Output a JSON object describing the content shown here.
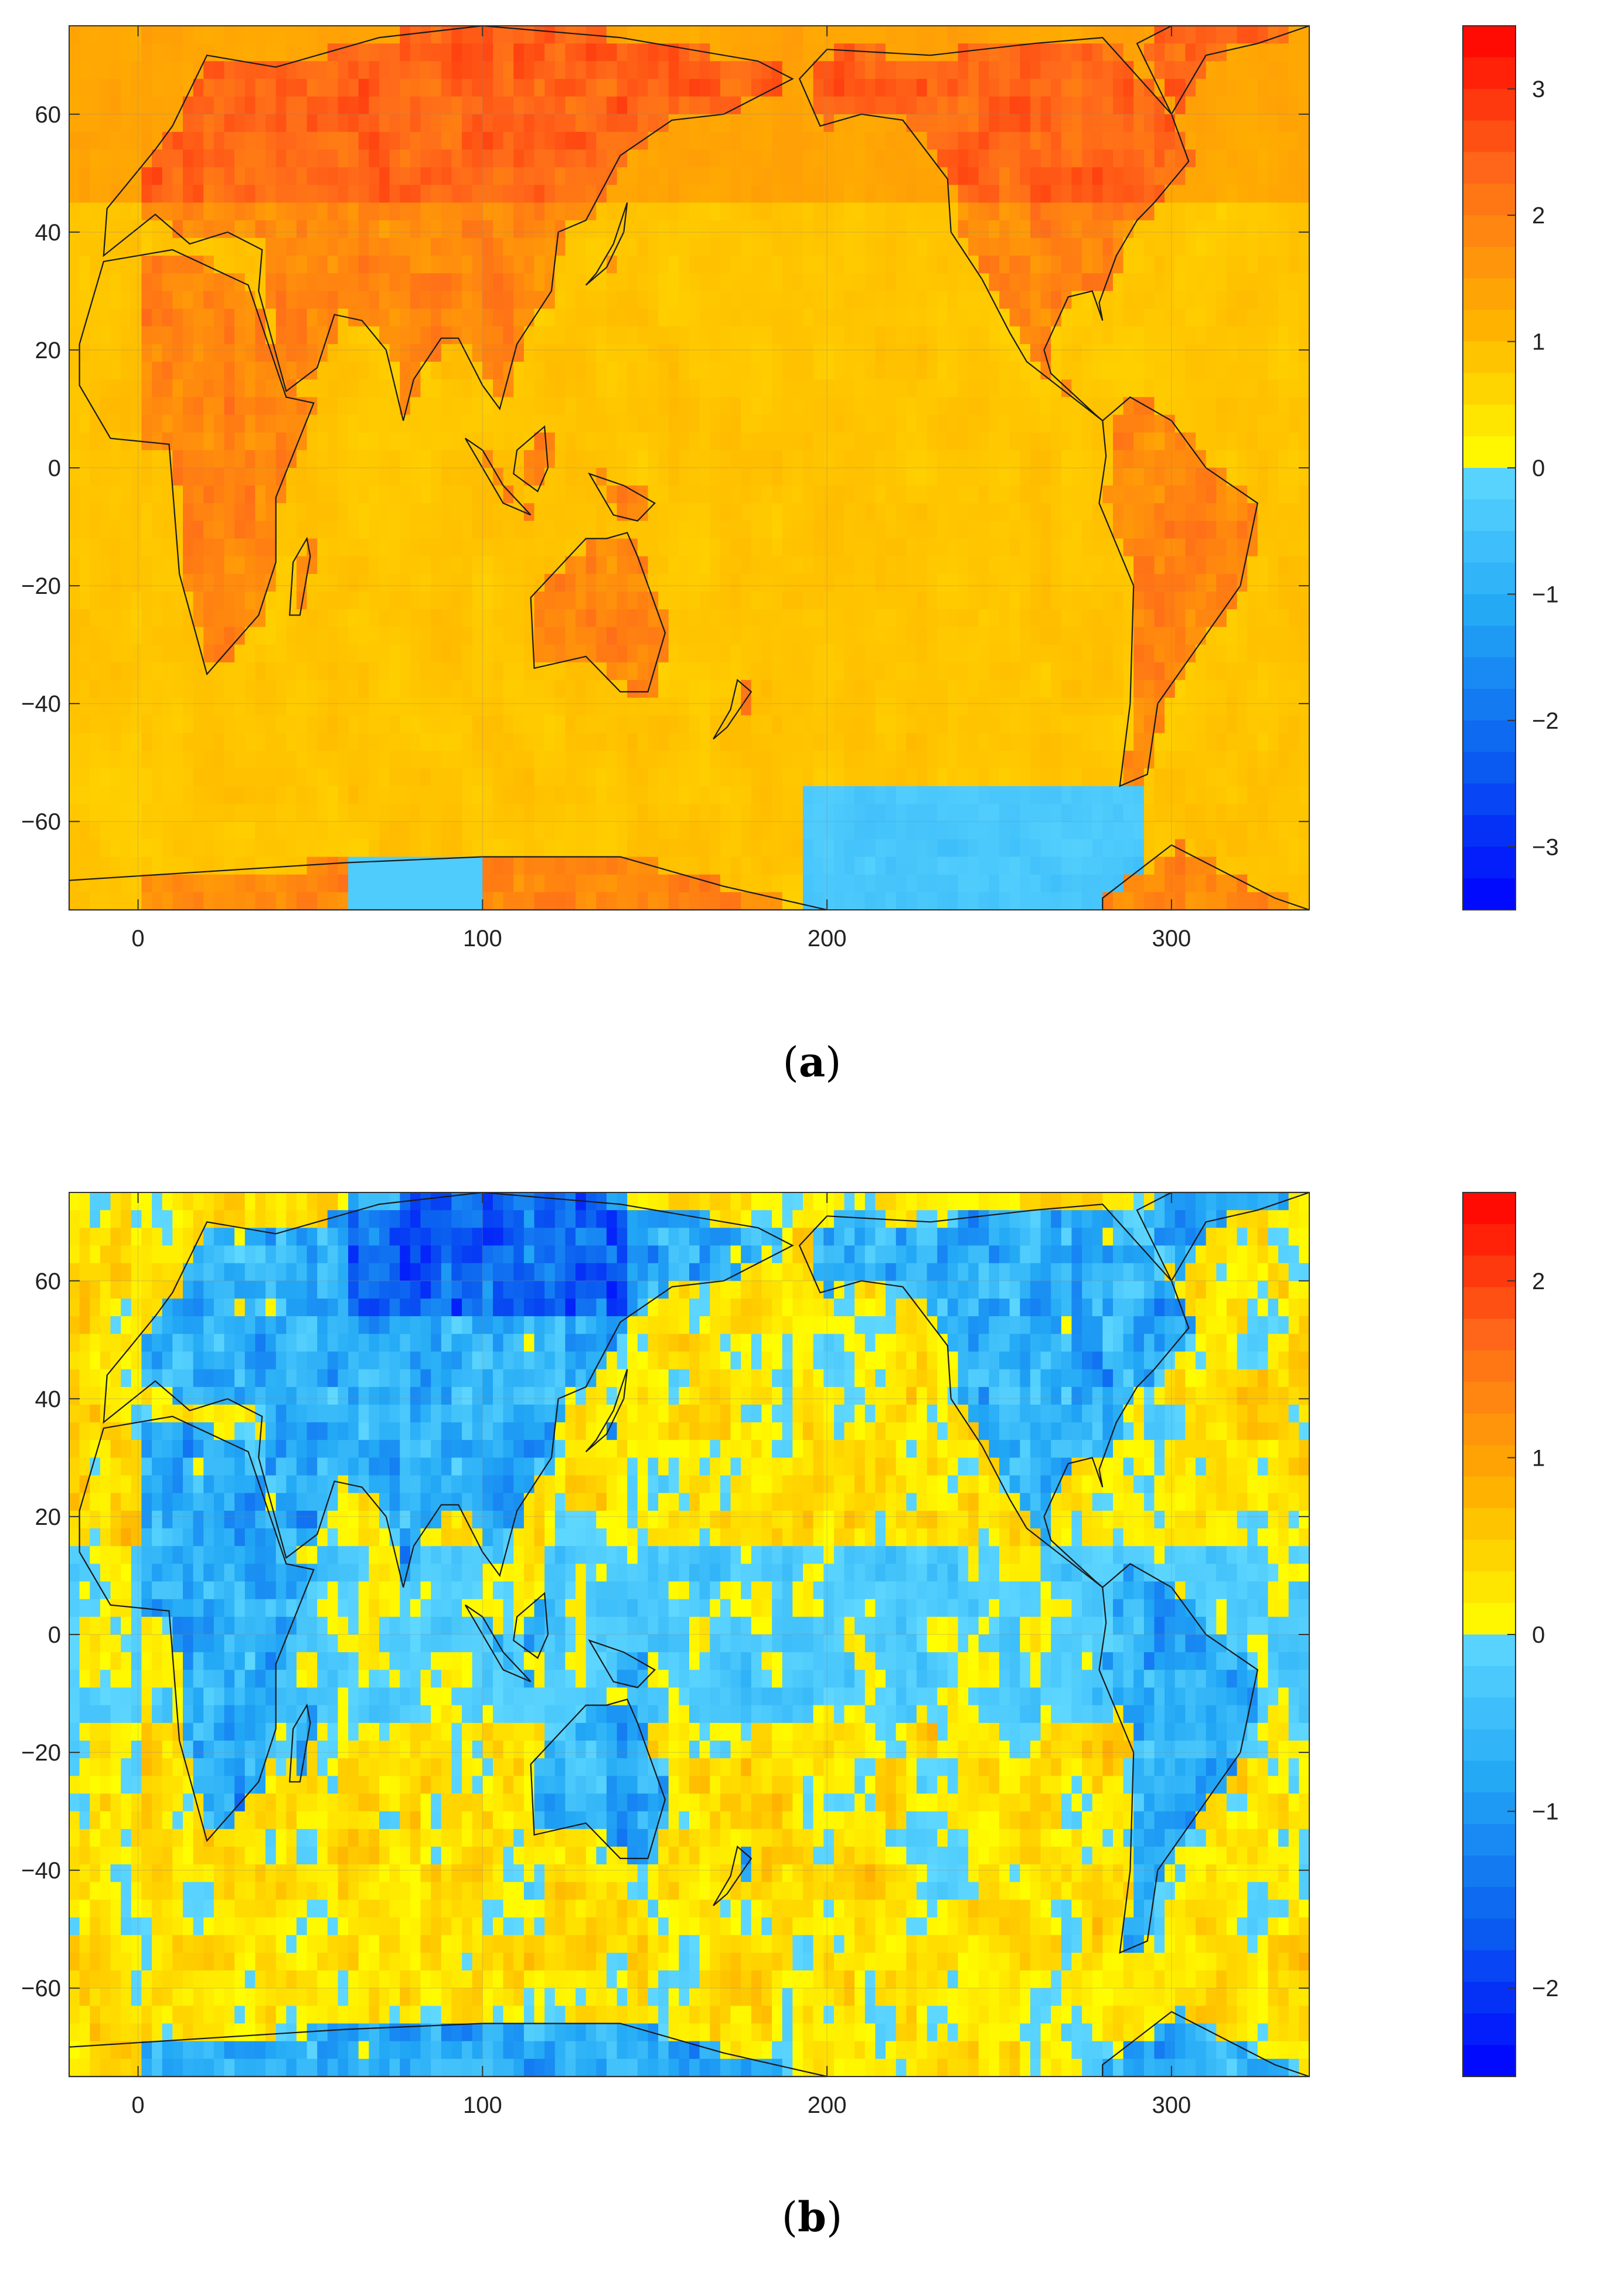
{
  "chart_data": [
    {
      "type": "heatmap",
      "panel": "(a)",
      "caption_letter": "a",
      "title": "",
      "xlabel": "",
      "ylabel": "",
      "xlim": [
        -20,
        340
      ],
      "ylim": [
        -75,
        75
      ],
      "xticks": [
        0,
        100,
        200,
        300
      ],
      "xtick_labels": [
        "0",
        "100",
        "200",
        "300"
      ],
      "yticks": [
        60,
        40,
        20,
        0,
        -20,
        -40,
        -60
      ],
      "ytick_labels": [
        "60",
        "40",
        "20",
        "0",
        "−20",
        "−40",
        "−60"
      ],
      "colorbar": {
        "limits": [
          -3.5,
          3.5
        ],
        "ticks": [
          3,
          2,
          1,
          0,
          -1,
          -2,
          -3
        ],
        "tick_labels": [
          "3",
          "2",
          "1",
          "0",
          "−1",
          "−2",
          "−3"
        ],
        "colormap": [
          "#0000ff",
          "#0a5cf0",
          "#22a8f5",
          "#5fd8ff",
          "#ffff00",
          "#ffb000",
          "#ff6a1a",
          "#ff0000"
        ]
      },
      "grid": true,
      "coastlines": true,
      "description_ocean_value": 0.8
    },
    {
      "type": "heatmap",
      "panel": "(b)",
      "caption_letter": "b",
      "title": "",
      "xlabel": "",
      "ylabel": "",
      "xlim": [
        -20,
        340
      ],
      "ylim": [
        -75,
        75
      ],
      "xticks": [
        0,
        100,
        200,
        300
      ],
      "xtick_labels": [
        "0",
        "100",
        "200",
        "300"
      ],
      "yticks": [
        60,
        40,
        20,
        0,
        -20,
        -40,
        -60
      ],
      "ytick_labels": [
        "60",
        "40",
        "20",
        "0",
        "−20",
        "−40",
        "−60"
      ],
      "colorbar": {
        "limits": [
          -2.5,
          2.5
        ],
        "ticks": [
          2,
          1,
          0,
          -1,
          -2
        ],
        "tick_labels": [
          "2",
          "1",
          "0",
          "−1",
          "−2"
        ],
        "colormap": [
          "#0000ff",
          "#0a5cf0",
          "#22a8f5",
          "#5fd8ff",
          "#ffff00",
          "#ffb000",
          "#ff6a1a",
          "#ff0000"
        ]
      },
      "grid": true,
      "coastlines": true
    }
  ]
}
